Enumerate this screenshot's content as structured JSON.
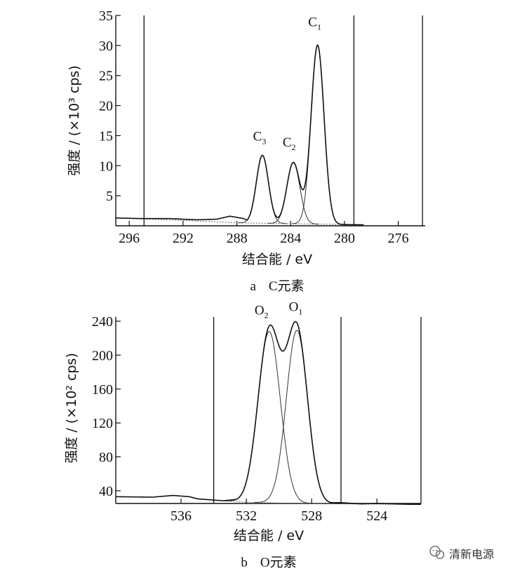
{
  "chart_data": [
    {
      "id": "a",
      "type": "line",
      "caption_letter": "a",
      "caption_text": "C元素",
      "xlabel": "结合能 / eV",
      "ylabel": "强度 / (×10³ cps)",
      "x_reversed": true,
      "xlim": [
        297,
        274
      ],
      "ylim": [
        0,
        35
      ],
      "xticks": [
        296,
        292,
        288,
        284,
        280,
        276
      ],
      "yticks": [
        5,
        10,
        15,
        20,
        25,
        30,
        35
      ],
      "vlines": [
        294.9,
        279.3,
        274.2
      ],
      "baseline": [
        [
          297,
          1.3
        ],
        [
          292,
          0.9
        ],
        [
          288,
          0.5
        ],
        [
          284,
          0.35
        ],
        [
          280,
          0.2
        ],
        [
          278,
          0.15
        ]
      ],
      "components": [
        {
          "name": "C₁",
          "center": 282.0,
          "height": 29.8,
          "sigma": 0.48
        },
        {
          "name": "C₂",
          "center": 283.8,
          "height": 10.2,
          "sigma": 0.48
        },
        {
          "name": "C₃",
          "center": 286.1,
          "height": 11.3,
          "sigma": 0.45
        }
      ],
      "envelope_extra": [
        [
          297,
          1.3
        ],
        [
          295,
          1.2
        ],
        [
          293,
          1.2
        ],
        [
          291,
          1.0
        ],
        [
          289.5,
          1.1
        ],
        [
          288.5,
          1.6
        ],
        [
          287.5,
          1.2
        ],
        [
          287,
          0.7
        ],
        [
          281,
          0.3
        ],
        [
          279.3,
          0.15
        ]
      ],
      "peak_labels": [
        {
          "main": "C",
          "sub": "1",
          "x": 282.0,
          "y": 33.2
        },
        {
          "main": "C",
          "sub": "2",
          "x": 283.9,
          "y": 13.2
        },
        {
          "main": "C",
          "sub": "3",
          "x": 286.1,
          "y": 14.2
        }
      ]
    },
    {
      "id": "b",
      "type": "line",
      "caption_letter": "b",
      "caption_text": "O元素",
      "xlabel": "结合能 / eV",
      "ylabel": "强度 / (×10² cps)",
      "x_reversed": true,
      "xlim": [
        540,
        521.3
      ],
      "ylim": [
        25,
        245
      ],
      "xticks": [
        536,
        532,
        528,
        524
      ],
      "yticks": [
        40,
        80,
        120,
        160,
        200,
        240
      ],
      "vlines": [
        534.0,
        526.2,
        521.3
      ],
      "baseline": [
        [
          540,
          33
        ],
        [
          536,
          32
        ],
        [
          534,
          29
        ],
        [
          532,
          26.5
        ],
        [
          530,
          25.5
        ],
        [
          528,
          25
        ],
        [
          526,
          24.5
        ],
        [
          522,
          24
        ]
      ],
      "components": [
        {
          "name": "O₂",
          "center": 530.6,
          "height": 202,
          "sigma": 0.68
        },
        {
          "name": "O₁",
          "center": 528.9,
          "height": 204,
          "sigma": 0.65
        }
      ],
      "envelope_extra": [
        [
          540,
          33
        ],
        [
          538,
          32
        ],
        [
          536.5,
          34.5
        ],
        [
          535.5,
          33
        ],
        [
          534.5,
          28
        ],
        [
          534,
          27
        ],
        [
          533,
          29
        ],
        [
          532.5,
          30
        ],
        [
          527,
          26
        ],
        [
          526.2,
          26
        ],
        [
          525,
          24.5
        ],
        [
          524,
          25
        ],
        [
          522,
          24
        ],
        [
          521.3,
          24
        ]
      ],
      "peak_labels": [
        {
          "main": "O",
          "sub": "2",
          "x": 530.9,
          "y": 248
        },
        {
          "main": "O",
          "sub": "1",
          "x": 528.8,
          "y": 252
        }
      ]
    }
  ],
  "watermark": {
    "text": "清新电源",
    "icon": "wechat-icon"
  }
}
